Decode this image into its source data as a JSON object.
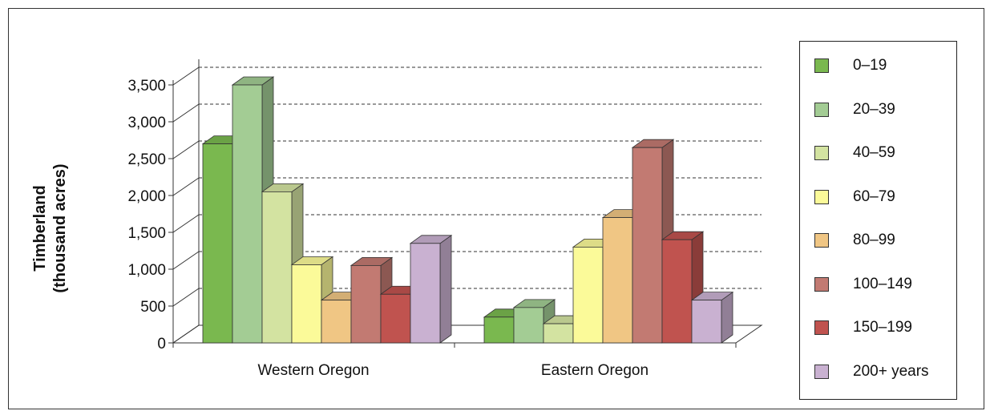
{
  "chart_data": {
    "type": "bar",
    "ylabel_line1": "Timberland",
    "ylabel_line2": "(thousand acres)",
    "xlabel": "",
    "ylim": [
      0,
      3500
    ],
    "yticks": [
      0,
      500,
      1000,
      1500,
      2000,
      2500,
      3000,
      3500
    ],
    "ytick_labels": [
      "0",
      "500",
      "1,000",
      "1,500",
      "2,000",
      "2,500",
      "3,000",
      "3,500"
    ],
    "categories": [
      "Western Oregon",
      "Eastern Oregon"
    ],
    "grid": "dashed horizontal",
    "legend_position": "right",
    "series": [
      {
        "name": "0–19",
        "color": "#7ab84f",
        "values": [
          2700,
          350
        ]
      },
      {
        "name": "20–39",
        "color": "#a3cc94",
        "values": [
          3500,
          480
        ]
      },
      {
        "name": "40–59",
        "color": "#d3e3a1",
        "values": [
          2050,
          260
        ]
      },
      {
        "name": "60–79",
        "color": "#fbfa99",
        "values": [
          1060,
          1300
        ]
      },
      {
        "name": "80–99",
        "color": "#f0c684",
        "values": [
          580,
          1700
        ]
      },
      {
        "name": "100–149",
        "color": "#c27a72",
        "values": [
          1050,
          2650
        ]
      },
      {
        "name": "150–199",
        "color": "#c0534f",
        "values": [
          660,
          1400
        ]
      },
      {
        "name": "200+ years",
        "color": "#c9b1d1",
        "values": [
          1350,
          580
        ]
      }
    ]
  }
}
